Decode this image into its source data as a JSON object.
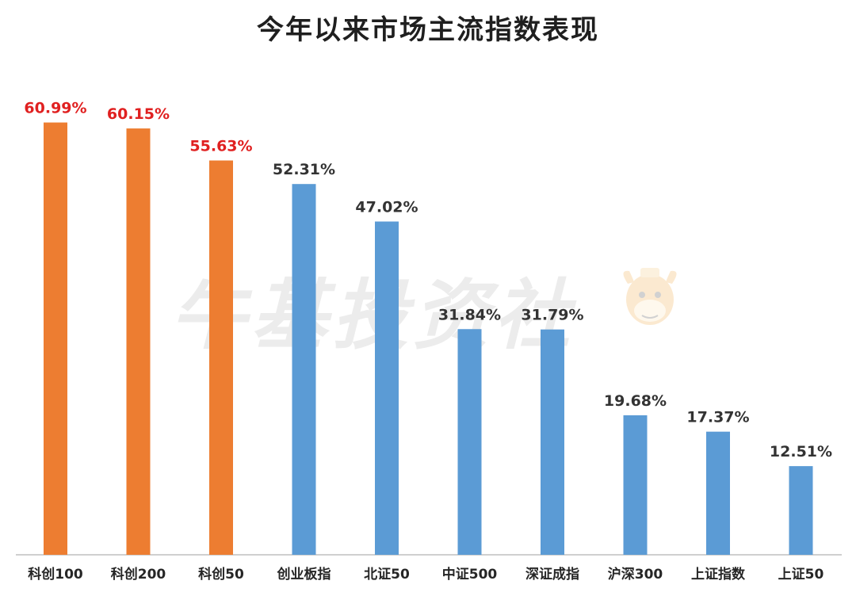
{
  "watermark": "牛基投资社",
  "colors": {
    "highlight": "#ed7d31",
    "normal": "#5b9bd5",
    "highlight_label": "#e02020",
    "normal_label": "#333333",
    "axis": "#bfbfbf"
  },
  "chart_data": {
    "type": "bar",
    "title": "今年以来市场主流指数表现",
    "xlabel": "",
    "ylabel": "",
    "ylim": [
      0,
      70
    ],
    "grid": false,
    "legend": "none",
    "categories": [
      "科创100",
      "科创200",
      "科创50",
      "创业板指",
      "北证50",
      "中证500",
      "深证成指",
      "沪深300",
      "上证指数",
      "上证50"
    ],
    "values": [
      60.99,
      60.15,
      55.63,
      52.31,
      47.02,
      31.84,
      31.79,
      19.68,
      17.37,
      12.51
    ],
    "value_labels": [
      "60.99%",
      "60.15%",
      "55.63%",
      "52.31%",
      "47.02%",
      "31.84%",
      "31.79%",
      "19.68%",
      "17.37%",
      "12.51%"
    ],
    "highlighted": [
      true,
      true,
      true,
      false,
      false,
      false,
      false,
      false,
      false,
      false
    ]
  }
}
